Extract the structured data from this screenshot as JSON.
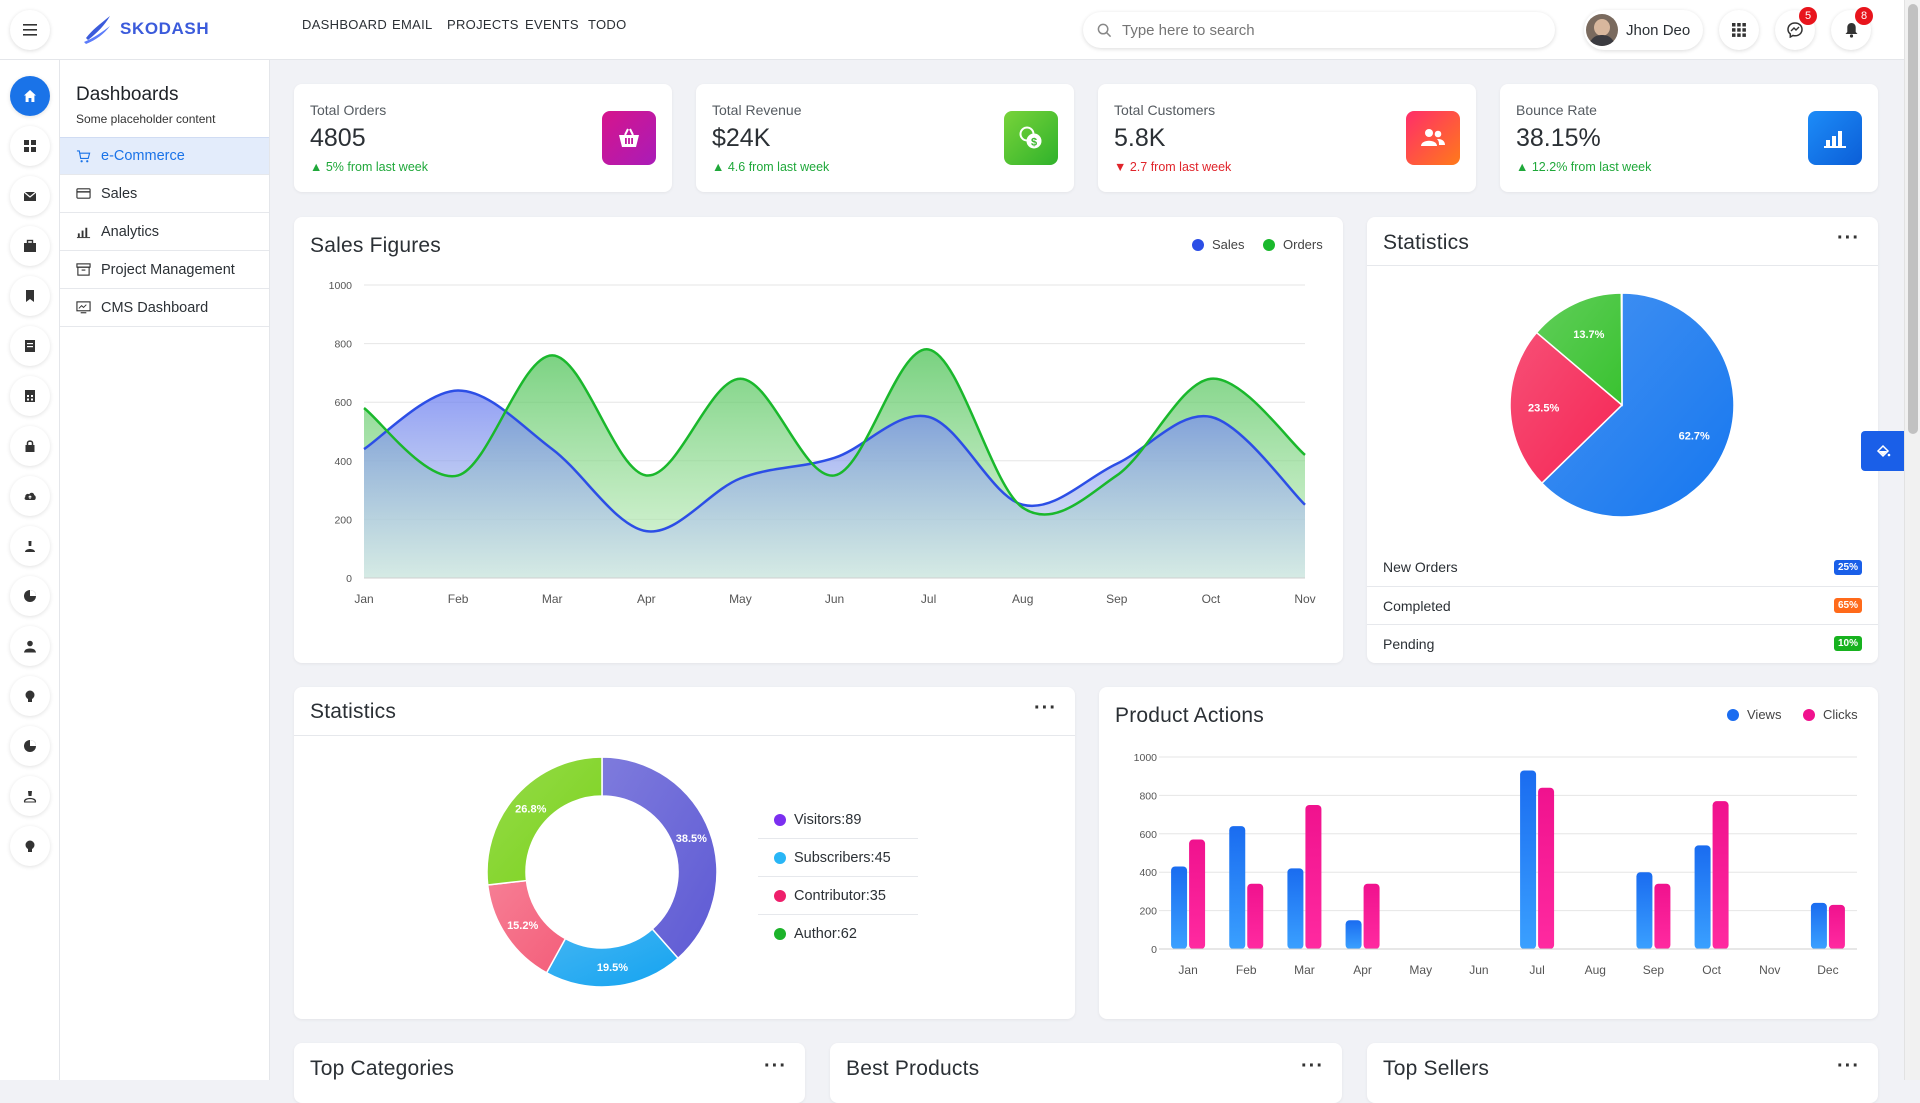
{
  "app": {
    "brand": "SKODASH"
  },
  "topnav": [
    "DASHBOARD",
    "EMAIL",
    "PROJECTS",
    "EVENTS",
    "TODO"
  ],
  "search": {
    "placeholder": "Type here to search"
  },
  "user": {
    "name": "Jhon Deo"
  },
  "notifications": {
    "messages": "5",
    "alerts": "8"
  },
  "sidebar": {
    "title": "Dashboards",
    "subtitle": "Some placeholder content",
    "items": [
      {
        "label": "e-Commerce",
        "icon": "cart-icon",
        "active": true
      },
      {
        "label": "Sales",
        "icon": "card-icon",
        "active": false
      },
      {
        "label": "Analytics",
        "icon": "bar-chart-icon",
        "active": false
      },
      {
        "label": "Project Management",
        "icon": "archive-icon",
        "active": false
      },
      {
        "label": "CMS Dashboard",
        "icon": "monitor-icon",
        "active": false
      }
    ]
  },
  "rail_icons": [
    "home-icon",
    "grid-icon",
    "envelope-icon",
    "briefcase-icon",
    "bookmark-icon",
    "document-icon",
    "file-icon",
    "lock-icon",
    "cloud-icon",
    "user-icon",
    "pie-icon",
    "person-icon",
    "bulb-icon",
    "pie-icon",
    "person-icon",
    "bulb-icon"
  ],
  "kpis": [
    {
      "label": "Total Orders",
      "value": "4805",
      "delta": "5% from last week",
      "trend": "up",
      "icon": "basket-icon",
      "gradient": [
        "#d6148c",
        "#a91cb8"
      ]
    },
    {
      "label": "Total Revenue",
      "value": "$24K",
      "delta": "4.6 from last week",
      "trend": "up",
      "icon": "coins-icon",
      "gradient": [
        "#78d33a",
        "#2fb22b"
      ]
    },
    {
      "label": "Total Customers",
      "value": "5.8K",
      "delta": "2.7 from last week",
      "trend": "down",
      "icon": "users-icon",
      "gradient": [
        "#ff2d6a",
        "#ff7a1a"
      ]
    },
    {
      "label": "Bounce Rate",
      "value": "38.15%",
      "delta": "12.2% from last week",
      "trend": "up",
      "icon": "chart-icon",
      "gradient": [
        "#1d8cf8",
        "#0b5ed7"
      ]
    }
  ],
  "colors": {
    "accent": "#1a73e8",
    "up": "#1fa83a",
    "down": "#e0242b"
  },
  "sales_card": {
    "title": "Sales Figures",
    "legend": [
      "Sales",
      "Orders"
    ]
  },
  "stats_card": {
    "title": "Statistics",
    "rows": [
      {
        "label": "New Orders",
        "badge": "25%",
        "color": "#1a5fe8"
      },
      {
        "label": "Completed",
        "badge": "65%",
        "color": "#ff6a1a"
      },
      {
        "label": "Pending",
        "badge": "10%",
        "color": "#17b21f"
      }
    ]
  },
  "donut_card": {
    "title": "Statistics",
    "legend": [
      {
        "label": "Visitors:89",
        "color": "#7b2ff0"
      },
      {
        "label": "Subscribers:45",
        "color": "#29b6f6"
      },
      {
        "label": "Contributor:35",
        "color": "#ee1f6b"
      },
      {
        "label": "Author:62",
        "color": "#1cb32a"
      }
    ]
  },
  "product_card": {
    "title": "Product Actions",
    "legend": [
      "Views",
      "Clicks"
    ]
  },
  "bottom_cards": [
    "Top Categories",
    "Best Products",
    "Top Sellers"
  ],
  "chart_data": [
    {
      "type": "area",
      "title": "Sales Figures",
      "x": [
        "Jan",
        "Feb",
        "Mar",
        "Apr",
        "May",
        "Jun",
        "Jul",
        "Aug",
        "Sep",
        "Oct",
        "Nov"
      ],
      "ylim": [
        0,
        1000
      ],
      "yticks": [
        0,
        200,
        400,
        600,
        800,
        1000
      ],
      "series": [
        {
          "name": "Sales",
          "values": [
            440,
            640,
            440,
            160,
            340,
            410,
            550,
            250,
            390,
            550,
            250
          ],
          "color": "#2c4ee6"
        },
        {
          "name": "Orders",
          "values": [
            580,
            350,
            760,
            350,
            680,
            350,
            780,
            240,
            350,
            680,
            420
          ],
          "color": "#1ab82c"
        }
      ]
    },
    {
      "type": "pie",
      "title": "Statistics",
      "slices": [
        {
          "label": "62.7%",
          "value": 62.7,
          "color": "#1677ef"
        },
        {
          "label": "23.5%",
          "value": 23.5,
          "color": "#f52454"
        },
        {
          "label": "13.7%",
          "value": 13.7,
          "color": "#39c230"
        }
      ]
    },
    {
      "type": "pie",
      "title": "Statistics",
      "donut": true,
      "slices": [
        {
          "label": "38.5%",
          "value": 38.5,
          "color": "#5e5ad4"
        },
        {
          "label": "19.5%",
          "value": 19.5,
          "color": "#14a3f0"
        },
        {
          "label": "15.2%",
          "value": 15.2,
          "color": "#f45e7a"
        },
        {
          "label": "26.8%",
          "value": 26.8,
          "color": "#7bd21c"
        }
      ]
    },
    {
      "type": "bar",
      "title": "Product Actions",
      "categories": [
        "Jan",
        "Feb",
        "Mar",
        "Apr",
        "May",
        "Jun",
        "Jul",
        "Aug",
        "Sep",
        "Oct",
        "Nov",
        "Dec"
      ],
      "ylim": [
        0,
        1000
      ],
      "yticks": [
        0,
        200,
        400,
        600,
        800,
        1000
      ],
      "series": [
        {
          "name": "Views",
          "values": [
            430,
            640,
            420,
            150,
            0,
            0,
            930,
            0,
            400,
            540,
            0,
            240
          ],
          "color": "#1a6cf0"
        },
        {
          "name": "Clicks",
          "values": [
            570,
            340,
            750,
            340,
            0,
            0,
            840,
            0,
            340,
            770,
            0,
            230
          ],
          "color": "#f0128e"
        }
      ]
    }
  ]
}
